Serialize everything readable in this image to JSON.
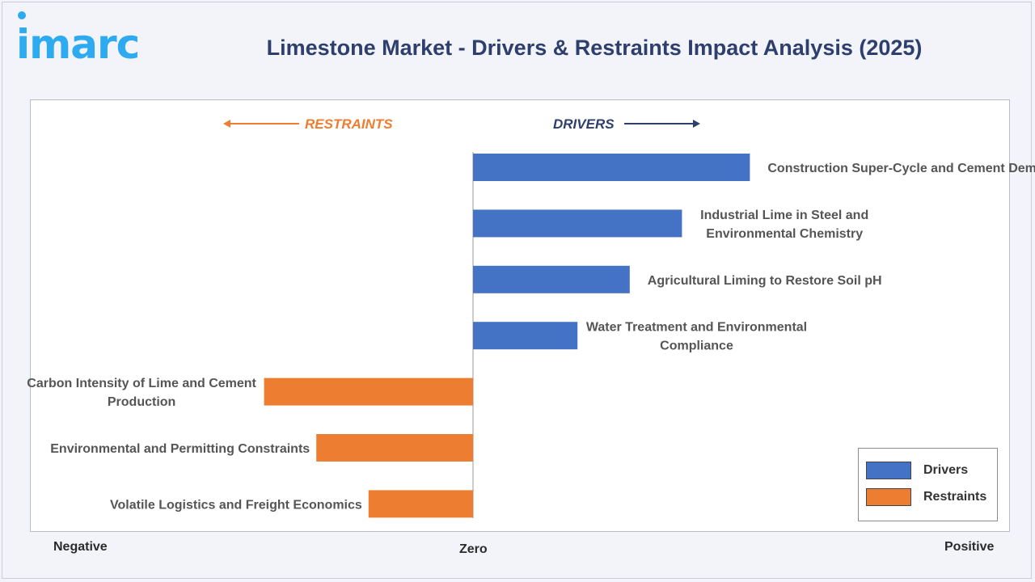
{
  "logo_text": "imarc",
  "title": "Limestone Market - Drivers & Restraints Impact Analysis (2025)",
  "direction_labels": {
    "restraints": "RESTRAINTS",
    "drivers": "DRIVERS"
  },
  "axis_labels": {
    "negative": "Negative",
    "zero": "Zero",
    "positive": "Positive"
  },
  "colors": {
    "drivers": "#4472c4",
    "restraints": "#ed7d31",
    "title": "#2e3f6e",
    "logo": "#2eaaf0"
  },
  "legend": [
    {
      "label": "Drivers",
      "color": "#4472c4"
    },
    {
      "label": "Restraints",
      "color": "#ed7d31"
    }
  ],
  "chart_data": {
    "type": "bar",
    "orientation": "horizontal",
    "title": "Limestone Market - Drivers & Restraints Impact Analysis (2025)",
    "xlabel": "",
    "ylabel": "",
    "categories": [
      "Construction Super-Cycle and Cement Demand",
      "Industrial Lime in Steel and Environmental Chemistry",
      "Agricultural Liming to Restore Soil pH",
      "Water Treatment and Environmental Compliance",
      "Carbon Intensity of Lime and Cement Production",
      "Environmental and Permitting Constraints",
      "Volatile Logistics and Freight Economics"
    ],
    "series": [
      {
        "name": "Drivers",
        "values": [
          5.3,
          4.0,
          3.0,
          2.0,
          null,
          null,
          null
        ]
      },
      {
        "name": "Restraints",
        "values": [
          null,
          null,
          null,
          null,
          -4.0,
          -3.0,
          -2.0
        ]
      }
    ],
    "xlim": [
      -8.5,
      10.2
    ],
    "grid": false,
    "legend_position": "bottom-right"
  }
}
